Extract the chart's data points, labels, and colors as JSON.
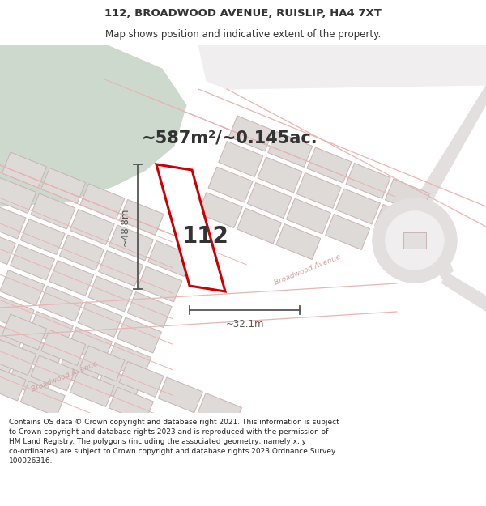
{
  "title_line1": "112, BROADWOOD AVENUE, RUISLIP, HA4 7XT",
  "title_line2": "Map shows position and indicative extent of the property.",
  "area_text": "~587m²/~0.145ac.",
  "dim_width": "~32.1m",
  "dim_height": "~48.8m",
  "plot_number": "112",
  "footer_text": "Contains OS data © Crown copyright and database right 2021. This information is subject to Crown copyright and database rights 2023 and is reproduced with the permission of HM Land Registry. The polygons (including the associated geometry, namely x, y co-ordinates) are subject to Crown copyright and database rights 2023 Ordnance Survey 100026316.",
  "map_bg": "#f0eeee",
  "green_color": "#ccd9cc",
  "block_fill": "#dedad8",
  "block_edge": "#c8b4b4",
  "road_line": "#e8b4b4",
  "plot_fill": "#ffffff",
  "plot_edge": "#cc0000",
  "text_dark": "#333333",
  "dim_color": "#555555",
  "title_fs": 9.5,
  "subtitle_fs": 8.5,
  "area_fs": 15,
  "plot_num_fs": 20,
  "dim_fs": 8.5,
  "footer_fs": 6.5,
  "road_label_fs": 6.5
}
